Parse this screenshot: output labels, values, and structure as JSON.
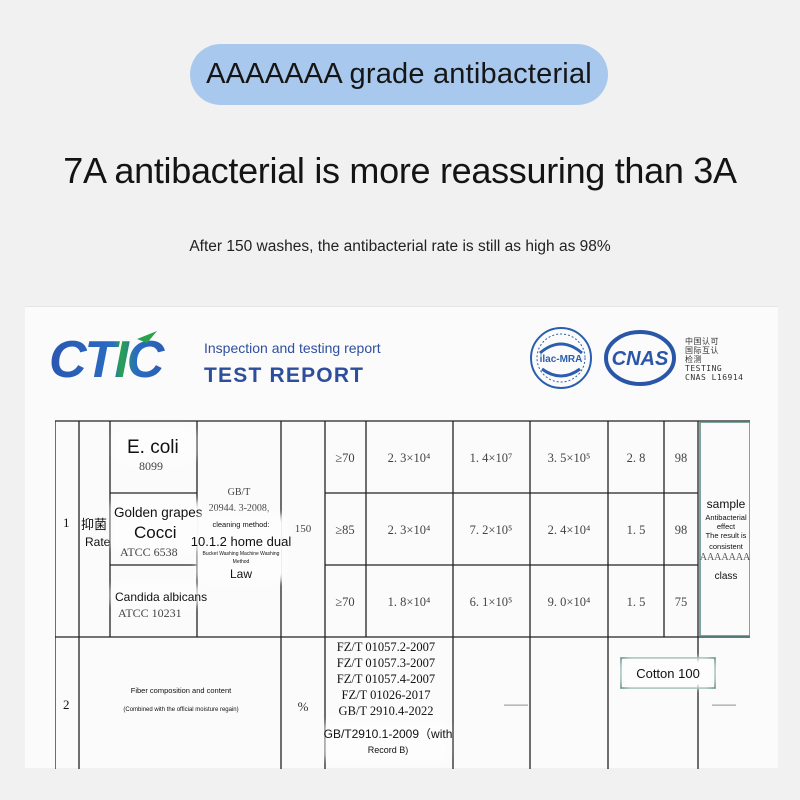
{
  "banner": {
    "label": "AAAAAAA grade antibacterial"
  },
  "headline": "7A antibacterial is more reassuring than 3A",
  "subline": "After 150 washes, the antibacterial rate is still as high as 98%",
  "report": {
    "logo_text": "CTIC",
    "subtitle": "Inspection and testing report",
    "title": "TEST REPORT",
    "ilac_label": "ilac-MRA",
    "cnas_label": "CNAS",
    "cnas_cn_1": "中国认可",
    "cnas_cn_2": "国际互认",
    "cnas_cn_3": "检测",
    "cnas_en_1": "TESTING",
    "cnas_en_2": "CNAS L16914"
  },
  "table": {
    "row1": {
      "num": "1",
      "item_cn": "抑菌",
      "item_en": "Rate",
      "bacteria": [
        {
          "name": "E. coli",
          "code": "8099"
        },
        {
          "name_1": "Golden grapes",
          "name_2": "Cocci",
          "code": "ATCC 6538"
        },
        {
          "name": "Candida albicans",
          "code": "ATCC 10231"
        }
      ],
      "standard_1": "GB/T",
      "standard_2": "20944. 3-2008,",
      "method_label": "cleaning method:",
      "method_name": "10.1.2 home dual",
      "method_small_1": "Bucket Washing Machine Washing",
      "method_small_2": "Method",
      "method_law": "Law",
      "washes": "150",
      "rows": [
        {
          "req": "≥70",
          "a": "2. 3×10⁴",
          "b": "1. 4×10⁷",
          "c": "3. 5×10⁵",
          "d": "2. 8",
          "e": "98"
        },
        {
          "req": "≥85",
          "a": "2. 3×10⁴",
          "b": "7. 2×10⁵",
          "c": "2. 4×10⁴",
          "d": "1. 5",
          "e": "98"
        },
        {
          "req": "≥70",
          "a": "1. 8×10⁴",
          "b": "6. 1×10⁵",
          "c": "9. 0×10⁴",
          "d": "1. 5",
          "e": "75"
        }
      ],
      "result_sample": "sample",
      "result_effect_1": "Antibacterial",
      "result_effect_2": "effect",
      "result_consistent_1": "The result is",
      "result_consistent_2": "consistent",
      "result_grade": "AAAAAAA",
      "result_class": "class"
    },
    "row2": {
      "num": "2",
      "item": "Fiber composition and content",
      "item_note": "(Combined with the official moisture regain)",
      "unit": "%",
      "standards": [
        "FZ/T 01057.2-2007",
        "FZ/T 01057.3-2007",
        "FZ/T 01057.4-2007",
        "FZ/T 01026-2017",
        "GB/T 2910.4-2022"
      ],
      "standard_extra_1": "GB/T2910.1-2009（with",
      "standard_extra_2": "Record B)",
      "dash": "——",
      "result": "Cotton 100"
    }
  }
}
